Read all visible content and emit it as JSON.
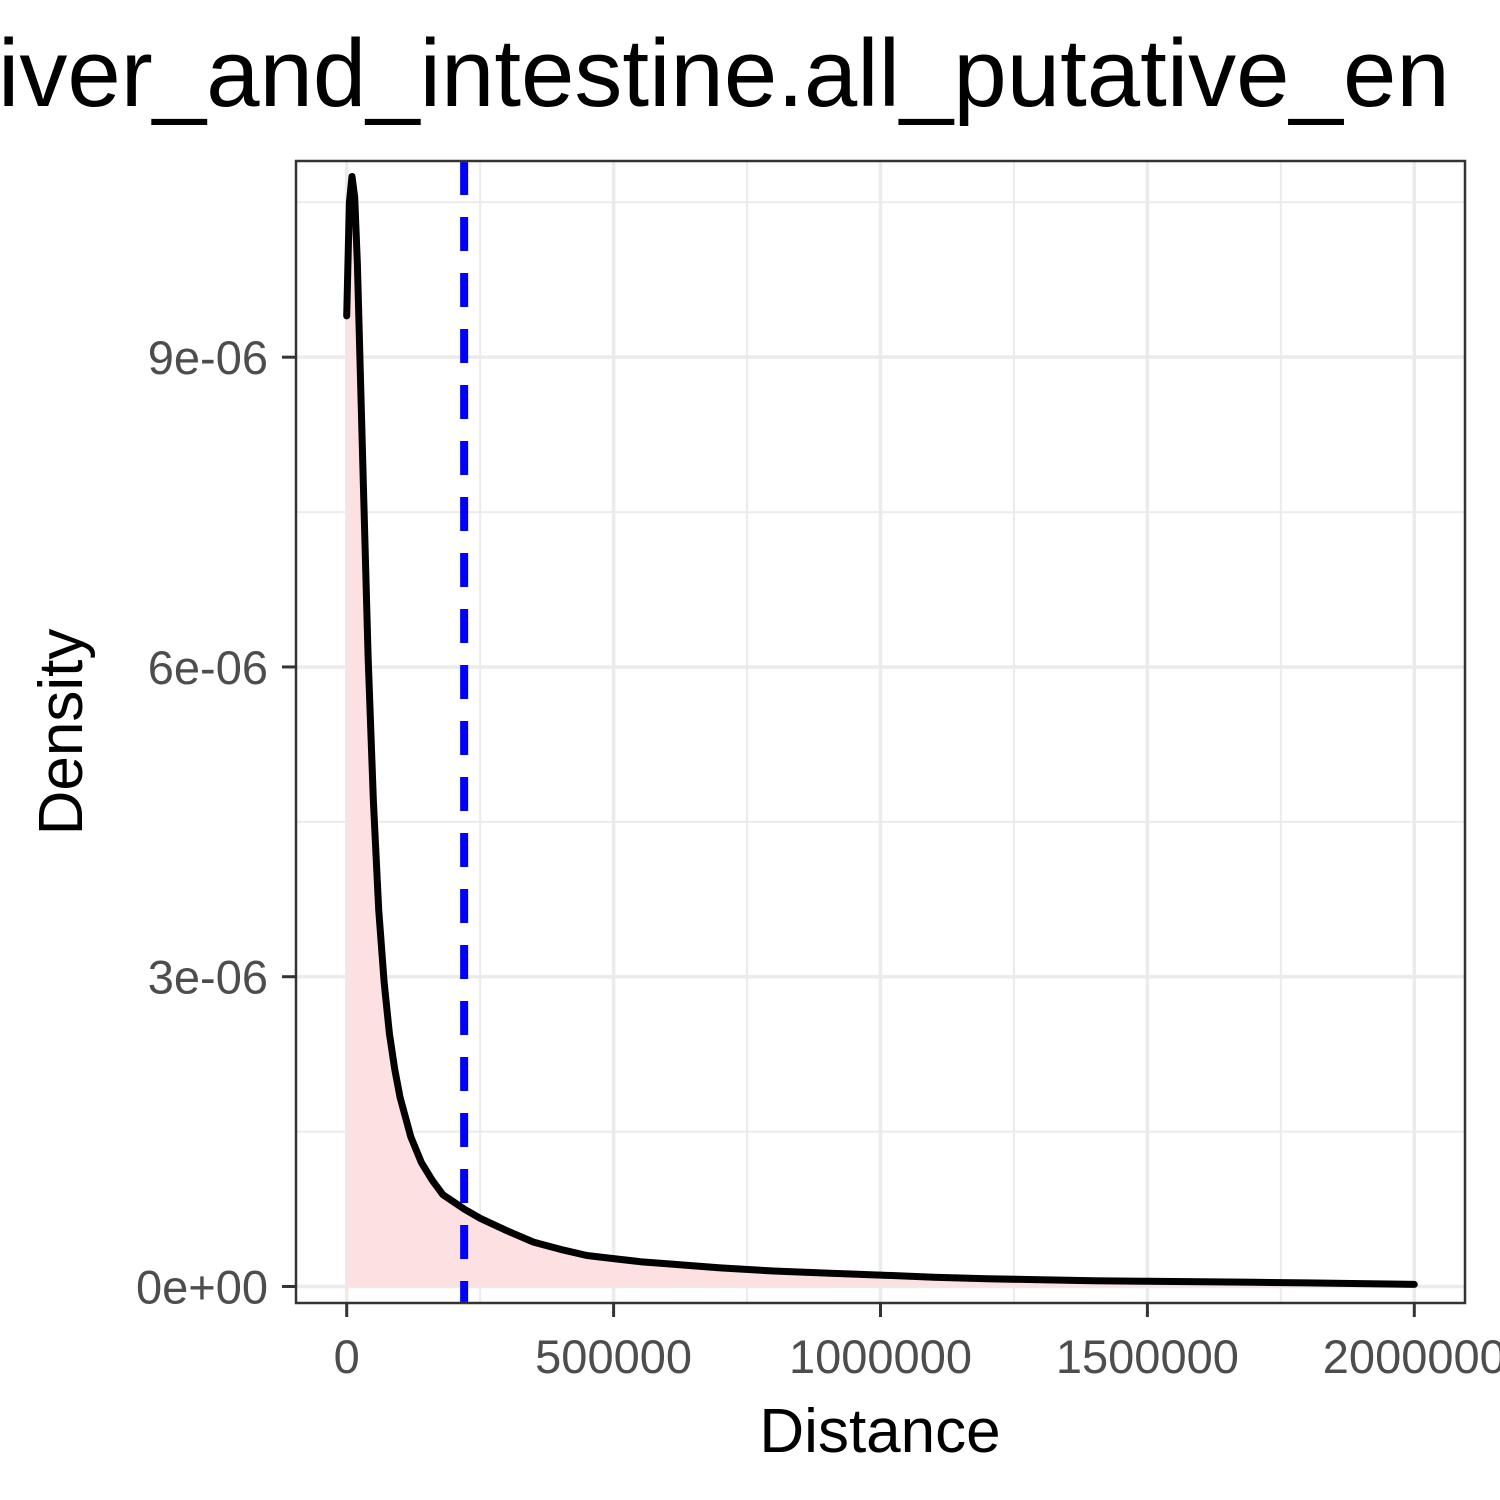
{
  "chart_data": {
    "type": "area",
    "title": "iver_and_intestine.all_putative_en",
    "xlabel": "Distance",
    "ylabel": "Density",
    "xlim": [
      -95000,
      2095000
    ],
    "ylim": [
      -1.6e-07,
      1.09e-05
    ],
    "x_ticks": [
      {
        "value": 0,
        "label": "0"
      },
      {
        "value": 500000,
        "label": "500000"
      },
      {
        "value": 1000000,
        "label": "1000000"
      },
      {
        "value": 1500000,
        "label": "1500000"
      },
      {
        "value": 2000000,
        "label": "2000000"
      }
    ],
    "x_minor": [
      250000,
      750000,
      1250000,
      1750000
    ],
    "y_ticks": [
      {
        "value": 0,
        "label": "0e+00"
      },
      {
        "value": 3e-06,
        "label": "3e-06"
      },
      {
        "value": 6e-06,
        "label": "6e-06"
      },
      {
        "value": 9e-06,
        "label": "9e-06"
      }
    ],
    "y_minor": [
      1.5e-06,
      4.5e-06,
      7.5e-06,
      1.05e-05
    ],
    "grid": true,
    "series": [
      {
        "name": "density",
        "color": "#000000",
        "fill": "#fde0e1",
        "x": [
          0,
          5000,
          10000,
          15000,
          20000,
          30000,
          40000,
          50000,
          60000,
          70000,
          80000,
          90000,
          100000,
          120000,
          140000,
          160000,
          180000,
          200000,
          220000,
          250000,
          300000,
          350000,
          400000,
          450000,
          500000,
          550000,
          600000,
          700000,
          800000,
          900000,
          1000000,
          1100000,
          1200000,
          1300000,
          1400000,
          1500000,
          1600000,
          1700000,
          1800000,
          1900000,
          2000000
        ],
        "values": [
          9.4e-06,
          1.05e-05,
          1.075e-05,
          1.055e-05,
          9.9e-06,
          8e-06,
          6.1e-06,
          4.7e-06,
          3.65e-06,
          2.95e-06,
          2.45e-06,
          2.1e-06,
          1.83e-06,
          1.45e-06,
          1.2e-06,
          1.03e-06,
          8.9e-07,
          8.2e-07,
          7.5e-07,
          6.6e-07,
          5.4e-07,
          4.3e-07,
          3.6e-07,
          3e-07,
          2.7e-07,
          2.4e-07,
          2.2e-07,
          1.8e-07,
          1.5e-07,
          1.3e-07,
          1.1e-07,
          9e-08,
          7.5e-08,
          6.5e-08,
          5.5e-08,
          5e-08,
          4.5e-08,
          4e-08,
          3.5e-08,
          2.8e-08,
          2e-08
        ]
      }
    ],
    "reference_line": {
      "x": 220000,
      "color": "#0000ff",
      "style": "dashed"
    }
  }
}
